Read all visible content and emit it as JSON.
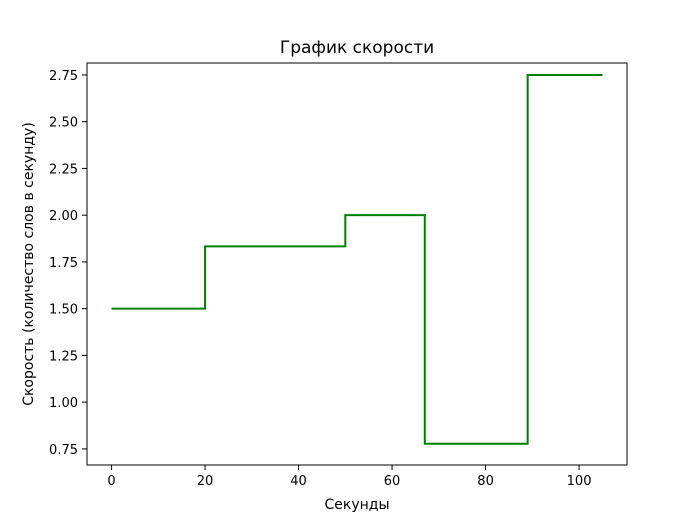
{
  "chart_data": {
    "type": "line",
    "drawstyle": "steps-post",
    "title": "График скорости",
    "xlabel": "Секунды",
    "ylabel": "Скорость (количество слов в секунду)",
    "x": [
      0,
      20,
      50,
      67,
      89,
      105
    ],
    "y": [
      1.5,
      1.8333,
      2.0,
      0.7778,
      2.75,
      2.75
    ],
    "xlim": [
      -5.25,
      110.25
    ],
    "ylim": [
      0.6639,
      2.8139
    ],
    "xticks": [
      0,
      20,
      40,
      60,
      80,
      100
    ],
    "xtick_labels": [
      "0",
      "20",
      "40",
      "60",
      "80",
      "100"
    ],
    "yticks": [
      0.75,
      1.0,
      1.25,
      1.5,
      1.75,
      2.0,
      2.25,
      2.5,
      2.75
    ],
    "ytick_labels": [
      "0.75",
      "1.00",
      "1.25",
      "1.50",
      "1.75",
      "2.00",
      "2.25",
      "2.50",
      "2.75"
    ],
    "grid": false,
    "legend": "none",
    "line_color": "#008000"
  }
}
